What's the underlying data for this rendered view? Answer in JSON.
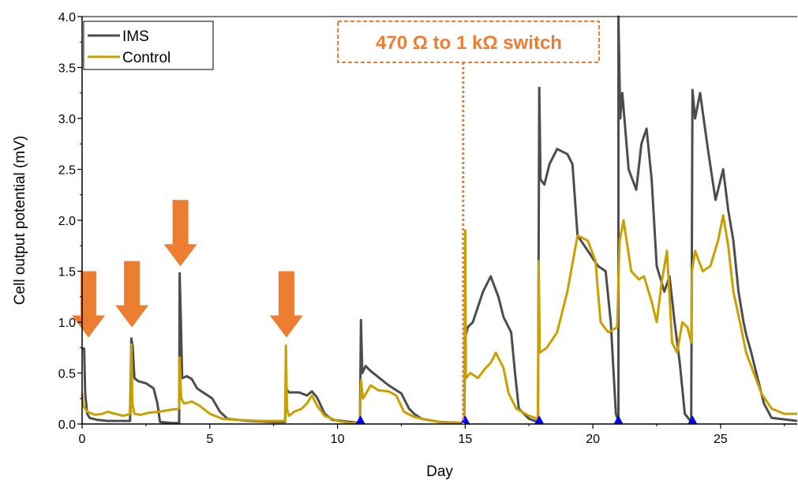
{
  "colors": {
    "ims": "#4D4D4D",
    "control": "#C9A000",
    "arrow": "#ED7D31",
    "marker": "#0000FF",
    "annotation": "#ED7D31"
  },
  "chart_data": {
    "type": "line",
    "xlabel": "Day",
    "ylabel": "Cell output potential (mV)",
    "xlim": [
      0,
      28
    ],
    "ylim": [
      0,
      4.0
    ],
    "xticks": [
      0,
      5,
      10,
      15,
      20,
      25
    ],
    "yticks": [
      0.0,
      0.5,
      1.0,
      1.5,
      2.0,
      2.5,
      3.0,
      3.5,
      4.0
    ],
    "ytick_labels": [
      "0.0",
      "0.5",
      "1.0",
      "1.5",
      "2.0",
      "2.5",
      "3.0",
      "3.5",
      "4.0"
    ],
    "grid": false,
    "legend_position": "top-left",
    "series": [
      {
        "name": "IMS",
        "color": "#4D4D4D",
        "points": [
          [
            0,
            0.74
          ],
          [
            0.08,
            0.74
          ],
          [
            0.12,
            0.3
          ],
          [
            0.2,
            0.1
          ],
          [
            0.3,
            0.06
          ],
          [
            0.6,
            0.04
          ],
          [
            1.0,
            0.03
          ],
          [
            1.5,
            0.03
          ],
          [
            1.88,
            0.03
          ],
          [
            1.93,
            0.84
          ],
          [
            1.98,
            0.76
          ],
          [
            2.05,
            0.45
          ],
          [
            2.2,
            0.42
          ],
          [
            2.5,
            0.4
          ],
          [
            2.8,
            0.35
          ],
          [
            2.95,
            0.2
          ],
          [
            3.05,
            0.02
          ],
          [
            3.5,
            0.01
          ],
          [
            3.8,
            0.01
          ],
          [
            3.82,
            1.48
          ],
          [
            3.86,
            1.1
          ],
          [
            3.92,
            0.45
          ],
          [
            4.1,
            0.47
          ],
          [
            4.3,
            0.44
          ],
          [
            4.5,
            0.35
          ],
          [
            4.8,
            0.3
          ],
          [
            5.1,
            0.25
          ],
          [
            5.4,
            0.12
          ],
          [
            5.7,
            0.05
          ],
          [
            6.5,
            0.03
          ],
          [
            7.5,
            0.02
          ],
          [
            7.95,
            0.02
          ],
          [
            7.98,
            0.35
          ],
          [
            8.1,
            0.31
          ],
          [
            8.5,
            0.31
          ],
          [
            8.8,
            0.28
          ],
          [
            9.0,
            0.32
          ],
          [
            9.2,
            0.26
          ],
          [
            9.5,
            0.1
          ],
          [
            9.8,
            0.04
          ],
          [
            10.5,
            0.02
          ],
          [
            10.88,
            0.01
          ],
          [
            10.92,
            1.02
          ],
          [
            10.97,
            0.5
          ],
          [
            11.1,
            0.57
          ],
          [
            11.3,
            0.52
          ],
          [
            11.5,
            0.48
          ],
          [
            12.0,
            0.38
          ],
          [
            12.5,
            0.3
          ],
          [
            12.8,
            0.15
          ],
          [
            13.0,
            0.1
          ],
          [
            13.3,
            0.05
          ],
          [
            14.0,
            0.02
          ],
          [
            14.96,
            0.01
          ],
          [
            15.0,
            0.85
          ],
          [
            15.1,
            0.95
          ],
          [
            15.3,
            1.0
          ],
          [
            15.5,
            1.15
          ],
          [
            15.7,
            1.3
          ],
          [
            16.0,
            1.45
          ],
          [
            16.3,
            1.25
          ],
          [
            16.5,
            1.05
          ],
          [
            16.8,
            0.9
          ],
          [
            16.95,
            0.5
          ],
          [
            17.1,
            0.15
          ],
          [
            17.5,
            0.05
          ],
          [
            17.85,
            0.02
          ],
          [
            17.9,
            3.3
          ],
          [
            17.95,
            2.4
          ],
          [
            18.1,
            2.35
          ],
          [
            18.3,
            2.55
          ],
          [
            18.6,
            2.7
          ],
          [
            19.0,
            2.65
          ],
          [
            19.2,
            2.55
          ],
          [
            19.4,
            1.85
          ],
          [
            19.8,
            1.7
          ],
          [
            20.2,
            1.55
          ],
          [
            20.5,
            1.5
          ],
          [
            20.7,
            1.0
          ],
          [
            20.9,
            0.1
          ],
          [
            21.0,
            0.02
          ],
          [
            21.0,
            4.0
          ],
          [
            21.07,
            3.0
          ],
          [
            21.15,
            3.25
          ],
          [
            21.4,
            2.5
          ],
          [
            21.7,
            2.3
          ],
          [
            21.9,
            2.75
          ],
          [
            22.1,
            2.9
          ],
          [
            22.3,
            2.4
          ],
          [
            22.5,
            1.55
          ],
          [
            22.8,
            1.3
          ],
          [
            23.0,
            1.45
          ],
          [
            23.2,
            1.0
          ],
          [
            23.4,
            0.6
          ],
          [
            23.6,
            0.1
          ],
          [
            23.85,
            0.02
          ],
          [
            23.9,
            3.28
          ],
          [
            24.0,
            3.0
          ],
          [
            24.2,
            3.25
          ],
          [
            24.5,
            2.7
          ],
          [
            24.8,
            2.2
          ],
          [
            25.1,
            2.5
          ],
          [
            25.3,
            2.1
          ],
          [
            25.5,
            1.8
          ],
          [
            25.7,
            1.3
          ],
          [
            25.9,
            1.0
          ],
          [
            26.0,
            0.88
          ],
          [
            26.2,
            0.7
          ],
          [
            26.4,
            0.5
          ],
          [
            26.7,
            0.2
          ],
          [
            27.0,
            0.06
          ],
          [
            28,
            0.03
          ]
        ]
      },
      {
        "name": "Control",
        "color": "#C9A000",
        "points": [
          [
            0,
            0.3
          ],
          [
            0.05,
            0.18
          ],
          [
            0.2,
            0.12
          ],
          [
            0.5,
            0.09
          ],
          [
            0.8,
            0.1
          ],
          [
            1.0,
            0.12
          ],
          [
            1.3,
            0.1
          ],
          [
            1.6,
            0.08
          ],
          [
            1.9,
            0.1
          ],
          [
            1.93,
            0.78
          ],
          [
            1.97,
            0.2
          ],
          [
            2.05,
            0.1
          ],
          [
            2.3,
            0.09
          ],
          [
            2.6,
            0.11
          ],
          [
            3.0,
            0.12
          ],
          [
            3.5,
            0.14
          ],
          [
            3.8,
            0.15
          ],
          [
            3.82,
            0.65
          ],
          [
            3.88,
            0.25
          ],
          [
            4.0,
            0.2
          ],
          [
            4.3,
            0.22
          ],
          [
            4.6,
            0.18
          ],
          [
            5.0,
            0.1
          ],
          [
            5.5,
            0.05
          ],
          [
            6.0,
            0.04
          ],
          [
            7.0,
            0.03
          ],
          [
            7.95,
            0.03
          ],
          [
            7.98,
            0.77
          ],
          [
            8.02,
            0.15
          ],
          [
            8.1,
            0.08
          ],
          [
            8.3,
            0.12
          ],
          [
            8.6,
            0.15
          ],
          [
            8.8,
            0.2
          ],
          [
            9.0,
            0.28
          ],
          [
            9.2,
            0.18
          ],
          [
            9.5,
            0.08
          ],
          [
            10.0,
            0.03
          ],
          [
            10.5,
            0.01
          ],
          [
            10.88,
            0.01
          ],
          [
            10.92,
            0.43
          ],
          [
            11.0,
            0.25
          ],
          [
            11.3,
            0.38
          ],
          [
            11.6,
            0.33
          ],
          [
            12.0,
            0.32
          ],
          [
            12.3,
            0.28
          ],
          [
            12.6,
            0.12
          ],
          [
            13.0,
            0.07
          ],
          [
            13.5,
            0.04
          ],
          [
            14.0,
            0.02
          ],
          [
            14.96,
            0.01
          ],
          [
            15.0,
            1.9
          ],
          [
            15.03,
            0.45
          ],
          [
            15.2,
            0.5
          ],
          [
            15.5,
            0.45
          ],
          [
            15.8,
            0.55
          ],
          [
            16.0,
            0.6
          ],
          [
            16.2,
            0.7
          ],
          [
            16.5,
            0.55
          ],
          [
            16.7,
            0.3
          ],
          [
            17.0,
            0.15
          ],
          [
            17.5,
            0.08
          ],
          [
            17.85,
            0.05
          ],
          [
            17.88,
            1.6
          ],
          [
            17.92,
            0.7
          ],
          [
            18.2,
            0.75
          ],
          [
            18.6,
            0.9
          ],
          [
            19.0,
            1.3
          ],
          [
            19.4,
            1.85
          ],
          [
            19.8,
            1.8
          ],
          [
            20.1,
            1.6
          ],
          [
            20.3,
            1.0
          ],
          [
            20.6,
            0.9
          ],
          [
            20.95,
            0.95
          ],
          [
            21.0,
            1.4
          ],
          [
            21.05,
            1.8
          ],
          [
            21.2,
            2.0
          ],
          [
            21.5,
            1.5
          ],
          [
            21.8,
            1.42
          ],
          [
            22.0,
            1.45
          ],
          [
            22.3,
            1.2
          ],
          [
            22.5,
            1.0
          ],
          [
            22.7,
            1.4
          ],
          [
            22.9,
            1.7
          ],
          [
            23.1,
            0.8
          ],
          [
            23.3,
            0.7
          ],
          [
            23.5,
            1.0
          ],
          [
            23.7,
            0.95
          ],
          [
            23.85,
            0.8
          ],
          [
            23.88,
            1.5
          ],
          [
            24.0,
            1.7
          ],
          [
            24.3,
            1.5
          ],
          [
            24.6,
            1.55
          ],
          [
            24.9,
            1.8
          ],
          [
            25.1,
            2.05
          ],
          [
            25.3,
            1.75
          ],
          [
            25.5,
            1.3
          ],
          [
            25.8,
            0.95
          ],
          [
            26.0,
            0.7
          ],
          [
            26.3,
            0.5
          ],
          [
            26.6,
            0.3
          ],
          [
            27.0,
            0.15
          ],
          [
            27.5,
            0.1
          ],
          [
            28,
            0.1
          ]
        ]
      }
    ],
    "annotations": [
      {
        "text": "470 Ω to 1 kΩ switch",
        "x": 14.92
      }
    ],
    "arrows_at_day": [
      0.25,
      1.95,
      3.85,
      8.0
    ],
    "arrow_tops_mv": [
      1.5,
      1.6,
      2.2,
      1.5
    ],
    "triangle_markers_at_day": [
      10.9,
      15.0,
      17.9,
      21.0,
      23.9
    ]
  }
}
